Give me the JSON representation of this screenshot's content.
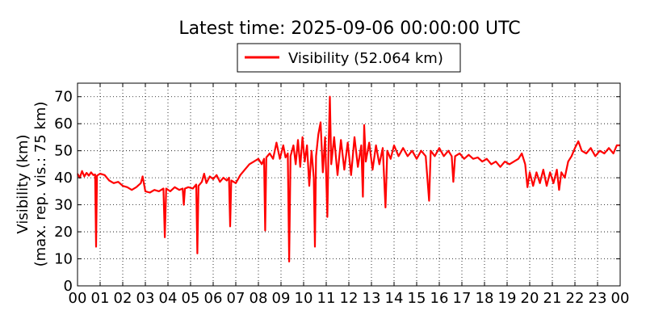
{
  "chart_data": {
    "type": "line",
    "title": "Latest time: 2025-09-06 00:00:00 UTC",
    "ylabel_line1": "Visibility (km)",
    "ylabel_line2": "(max. rep. vis.: 75 km)",
    "xlabel": "",
    "xlim": [
      0,
      24
    ],
    "ylim": [
      0,
      75
    ],
    "grid": true,
    "legend_position": "top-center",
    "x_ticks": [
      0,
      1,
      2,
      3,
      4,
      5,
      6,
      7,
      8,
      9,
      10,
      11,
      12,
      13,
      14,
      15,
      16,
      17,
      18,
      19,
      20,
      21,
      22,
      23,
      24
    ],
    "x_tick_labels": [
      "00",
      "01",
      "02",
      "03",
      "04",
      "05",
      "06",
      "07",
      "08",
      "09",
      "10",
      "11",
      "12",
      "13",
      "14",
      "15",
      "16",
      "17",
      "18",
      "19",
      "20",
      "21",
      "22",
      "23",
      "00"
    ],
    "y_ticks": [
      0,
      10,
      20,
      30,
      40,
      50,
      60,
      70
    ],
    "y_tick_labels": [
      "0",
      "10",
      "20",
      "30",
      "40",
      "50",
      "60",
      "70"
    ],
    "series": [
      {
        "name": "Visibility (52.064 km)",
        "color": "#ff0000",
        "points": [
          [
            0.0,
            41.5
          ],
          [
            0.1,
            40.0
          ],
          [
            0.2,
            42.5
          ],
          [
            0.3,
            40.5
          ],
          [
            0.4,
            41.8
          ],
          [
            0.5,
            40.8
          ],
          [
            0.6,
            42.0
          ],
          [
            0.7,
            41.0
          ],
          [
            0.78,
            41.2
          ],
          [
            0.82,
            14.5
          ],
          [
            0.86,
            40.8
          ],
          [
            1.0,
            41.5
          ],
          [
            1.2,
            41.0
          ],
          [
            1.4,
            39.0
          ],
          [
            1.6,
            38.0
          ],
          [
            1.8,
            38.5
          ],
          [
            2.0,
            37.0
          ],
          [
            2.2,
            36.5
          ],
          [
            2.4,
            35.5
          ],
          [
            2.6,
            36.5
          ],
          [
            2.8,
            38.0
          ],
          [
            2.88,
            40.5
          ],
          [
            3.0,
            35.0
          ],
          [
            3.2,
            34.5
          ],
          [
            3.4,
            35.5
          ],
          [
            3.6,
            35.0
          ],
          [
            3.8,
            36.0
          ],
          [
            3.86,
            18.0
          ],
          [
            3.92,
            36.0
          ],
          [
            4.1,
            35.0
          ],
          [
            4.3,
            36.5
          ],
          [
            4.5,
            35.5
          ],
          [
            4.65,
            36.0
          ],
          [
            4.7,
            30.0
          ],
          [
            4.75,
            36.0
          ],
          [
            4.9,
            36.5
          ],
          [
            5.1,
            36.0
          ],
          [
            5.25,
            37.5
          ],
          [
            5.3,
            12.0
          ],
          [
            5.35,
            37.0
          ],
          [
            5.5,
            38.5
          ],
          [
            5.6,
            41.5
          ],
          [
            5.7,
            38.0
          ],
          [
            5.85,
            40.5
          ],
          [
            6.0,
            39.5
          ],
          [
            6.15,
            41.0
          ],
          [
            6.3,
            38.5
          ],
          [
            6.45,
            40.0
          ],
          [
            6.6,
            39.0
          ],
          [
            6.7,
            40.0
          ],
          [
            6.75,
            22.0
          ],
          [
            6.8,
            39.0
          ],
          [
            7.0,
            38.0
          ],
          [
            7.2,
            41.0
          ],
          [
            7.4,
            43.0
          ],
          [
            7.6,
            45.0
          ],
          [
            7.8,
            46.0
          ],
          [
            8.0,
            47.0
          ],
          [
            8.15,
            45.0
          ],
          [
            8.25,
            47.0
          ],
          [
            8.3,
            20.5
          ],
          [
            8.35,
            47.5
          ],
          [
            8.5,
            49.0
          ],
          [
            8.65,
            47.0
          ],
          [
            8.8,
            53.0
          ],
          [
            8.95,
            47.0
          ],
          [
            9.1,
            52.0
          ],
          [
            9.2,
            47.5
          ],
          [
            9.3,
            49.0
          ],
          [
            9.36,
            9.0
          ],
          [
            9.42,
            48.0
          ],
          [
            9.55,
            52.0
          ],
          [
            9.65,
            45.0
          ],
          [
            9.75,
            54.0
          ],
          [
            9.85,
            44.0
          ],
          [
            9.95,
            55.0
          ],
          [
            10.05,
            46.0
          ],
          [
            10.15,
            52.0
          ],
          [
            10.25,
            37.0
          ],
          [
            10.35,
            50.0
          ],
          [
            10.45,
            40.0
          ],
          [
            10.5,
            14.5
          ],
          [
            10.55,
            48.0
          ],
          [
            10.65,
            56.0
          ],
          [
            10.75,
            60.5
          ],
          [
            10.85,
            42.0
          ],
          [
            10.95,
            55.0
          ],
          [
            11.05,
            25.5
          ],
          [
            11.1,
            50.0
          ],
          [
            11.16,
            70.0
          ],
          [
            11.22,
            45.0
          ],
          [
            11.35,
            55.0
          ],
          [
            11.5,
            41.0
          ],
          [
            11.65,
            54.0
          ],
          [
            11.8,
            43.0
          ],
          [
            11.95,
            53.0
          ],
          [
            12.1,
            41.0
          ],
          [
            12.25,
            55.0
          ],
          [
            12.4,
            44.0
          ],
          [
            12.55,
            52.0
          ],
          [
            12.62,
            33.0
          ],
          [
            12.68,
            59.5
          ],
          [
            12.75,
            46.0
          ],
          [
            12.9,
            53.0
          ],
          [
            13.05,
            43.0
          ],
          [
            13.2,
            52.0
          ],
          [
            13.35,
            45.0
          ],
          [
            13.5,
            51.0
          ],
          [
            13.62,
            29.0
          ],
          [
            13.7,
            50.0
          ],
          [
            13.85,
            47.0
          ],
          [
            14.0,
            52.0
          ],
          [
            14.2,
            48.0
          ],
          [
            14.4,
            51.0
          ],
          [
            14.6,
            48.0
          ],
          [
            14.8,
            50.0
          ],
          [
            15.0,
            47.0
          ],
          [
            15.2,
            50.0
          ],
          [
            15.4,
            48.0
          ],
          [
            15.55,
            31.5
          ],
          [
            15.62,
            50.0
          ],
          [
            15.8,
            48.0
          ],
          [
            16.0,
            51.0
          ],
          [
            16.2,
            48.0
          ],
          [
            16.4,
            50.0
          ],
          [
            16.55,
            48.0
          ],
          [
            16.62,
            38.5
          ],
          [
            16.7,
            48.0
          ],
          [
            16.9,
            49.0
          ],
          [
            17.1,
            47.0
          ],
          [
            17.3,
            48.5
          ],
          [
            17.5,
            47.0
          ],
          [
            17.7,
            47.5
          ],
          [
            17.9,
            46.0
          ],
          [
            18.1,
            47.0
          ],
          [
            18.3,
            45.0
          ],
          [
            18.5,
            46.0
          ],
          [
            18.7,
            44.0
          ],
          [
            18.9,
            46.0
          ],
          [
            19.1,
            45.0
          ],
          [
            19.3,
            46.0
          ],
          [
            19.5,
            47.0
          ],
          [
            19.65,
            49.0
          ],
          [
            19.8,
            45.0
          ],
          [
            19.9,
            36.5
          ],
          [
            20.0,
            42.0
          ],
          [
            20.15,
            37.0
          ],
          [
            20.3,
            42.0
          ],
          [
            20.45,
            38.0
          ],
          [
            20.6,
            43.0
          ],
          [
            20.75,
            37.0
          ],
          [
            20.9,
            42.0
          ],
          [
            21.05,
            38.0
          ],
          [
            21.2,
            43.0
          ],
          [
            21.3,
            35.5
          ],
          [
            21.4,
            42.0
          ],
          [
            21.55,
            40.0
          ],
          [
            21.7,
            46.0
          ],
          [
            21.85,
            48.0
          ],
          [
            22.0,
            51.0
          ],
          [
            22.15,
            53.5
          ],
          [
            22.3,
            50.0
          ],
          [
            22.5,
            49.0
          ],
          [
            22.7,
            51.0
          ],
          [
            22.9,
            48.0
          ],
          [
            23.1,
            50.0
          ],
          [
            23.3,
            49.0
          ],
          [
            23.5,
            51.0
          ],
          [
            23.7,
            49.0
          ],
          [
            23.85,
            52.0
          ],
          [
            24.0,
            52.0
          ]
        ]
      }
    ]
  }
}
